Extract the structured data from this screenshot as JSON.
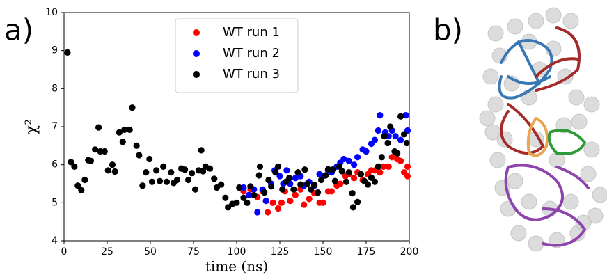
{
  "panel_labels": [
    "a)",
    "b)"
  ],
  "chart_data": {
    "type": "scatter",
    "xlabel": "time (ns)",
    "ylabel": "χ²",
    "xlim": [
      0,
      200
    ],
    "xticks": [
      0,
      25,
      50,
      75,
      100,
      125,
      150,
      175,
      200
    ],
    "ylim": [
      4,
      10
    ],
    "yticks": [
      4,
      5,
      6,
      7,
      8,
      9,
      10
    ],
    "legend": "upper center",
    "series": [
      {
        "name": "WT run 1",
        "color": "#ff0000",
        "x": [
          104,
          108,
          112,
          115,
          118,
          121,
          124,
          126,
          128,
          131,
          134,
          137,
          139,
          142,
          145,
          148,
          150,
          153,
          155,
          158,
          160,
          163,
          165,
          168,
          170,
          173,
          176,
          178,
          180,
          183,
          185,
          188,
          190,
          193,
          195,
          197,
          199,
          199
        ],
        "values": [
          5.3,
          5.35,
          5.15,
          5.3,
          4.75,
          5.0,
          4.85,
          5.0,
          5.3,
          5.05,
          5.2,
          5.35,
          4.95,
          5.1,
          5.25,
          5.0,
          5.0,
          5.3,
          5.3,
          5.45,
          5.5,
          5.7,
          5.75,
          5.65,
          5.8,
          5.6,
          5.75,
          5.85,
          5.85,
          5.8,
          5.95,
          5.95,
          6.2,
          6.15,
          6.1,
          5.8,
          5.95,
          5.7
        ]
      },
      {
        "name": "WT run 2",
        "color": "#0000ff",
        "x": [
          104,
          107,
          110,
          112,
          115,
          117,
          120,
          122,
          125,
          127,
          129,
          131,
          134,
          137,
          139,
          142,
          145,
          148,
          150,
          153,
          155,
          158,
          160,
          162,
          165,
          168,
          170,
          173,
          175,
          178,
          180,
          182,
          183,
          186,
          188,
          190,
          192,
          195,
          198,
          199
        ],
        "values": [
          5.4,
          5.2,
          5.35,
          4.75,
          5.35,
          5.05,
          5.5,
          5.85,
          5.7,
          5.5,
          5.85,
          5.5,
          5.65,
          5.7,
          5.45,
          5.55,
          5.45,
          5.75,
          5.7,
          5.85,
          5.8,
          5.95,
          6.05,
          6.15,
          6.1,
          6.0,
          6.2,
          6.4,
          6.35,
          6.55,
          6.65,
          6.9,
          7.3,
          6.85,
          6.75,
          6.9,
          6.75,
          6.65,
          7.3,
          6.9
        ]
      },
      {
        "name": "WT run 3",
        "color": "#000000",
        "x": [
          2,
          4,
          6,
          8,
          10,
          12,
          14,
          15.5,
          18,
          20,
          21,
          23.5,
          25.5,
          28,
          29.5,
          32,
          34,
          35,
          38,
          39.5,
          42,
          43.5,
          45.5,
          47.5,
          49.5,
          51,
          53.5,
          55.5,
          57.5,
          59.5,
          62,
          63.5,
          65.5,
          68,
          70,
          72,
          74,
          76,
          78,
          79.5,
          80.5,
          82,
          84.5,
          87,
          88.5,
          91,
          93.5,
          95,
          97.5,
          100,
          101.5,
          104,
          106,
          108,
          110,
          113,
          113.5,
          116,
          118.5,
          120,
          122.5,
          124,
          126.5,
          128.5,
          130.5,
          133,
          135.5,
          137,
          139.5,
          141,
          143,
          145,
          147,
          149,
          151.5,
          153,
          155.5,
          157,
          159.5,
          161,
          163.5,
          165,
          167,
          167.5,
          170,
          172,
          174,
          176,
          178,
          180,
          182,
          184,
          185.5,
          187.5,
          189,
          191.5,
          193,
          195,
          197,
          198.5
        ],
        "values": [
          8.95,
          6.07,
          5.95,
          5.45,
          5.33,
          5.6,
          6.12,
          6.1,
          6.4,
          6.98,
          6.35,
          6.35,
          5.85,
          6.0,
          5.82,
          6.85,
          6.6,
          6.92,
          6.92,
          7.5,
          6.5,
          6.25,
          5.45,
          5.8,
          6.15,
          5.55,
          5.85,
          5.57,
          5.95,
          5.55,
          5.8,
          5.52,
          5.6,
          5.9,
          5.87,
          5.6,
          5.78,
          5.35,
          5.85,
          6.38,
          5.83,
          5.95,
          5.9,
          5.63,
          5.4,
          5.48,
          5.13,
          4.88,
          4.97,
          5.0,
          5.4,
          5.13,
          5.0,
          5.43,
          5.2,
          5.72,
          5.95,
          5.27,
          5.6,
          5.43,
          5.8,
          5.95,
          5.35,
          5.55,
          5.65,
          5.35,
          5.8,
          5.48,
          5.87,
          5.5,
          5.35,
          5.47,
          5.27,
          5.6,
          5.72,
          5.88,
          5.87,
          5.57,
          5.95,
          5.83,
          5.55,
          5.8,
          5.25,
          4.88,
          5.02,
          5.75,
          5.57,
          5.48,
          5.66,
          5.55,
          5.95,
          6.2,
          6.75,
          6.57,
          7.0,
          6.35,
          6.3,
          7.27,
          6.8,
          6.57
        ]
      }
    ]
  }
}
